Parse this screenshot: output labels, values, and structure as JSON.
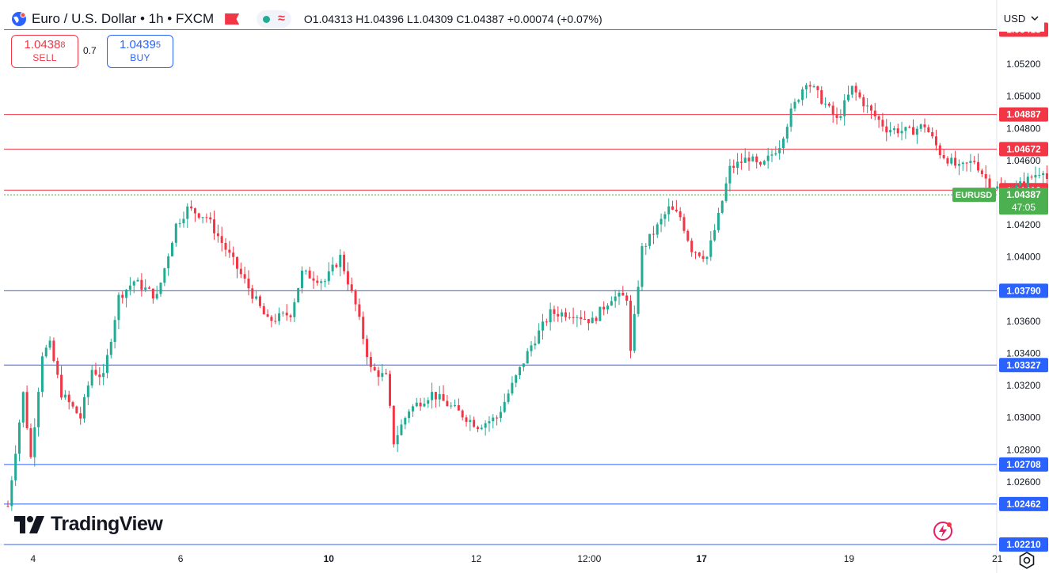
{
  "header": {
    "title": "Euro / U.S. Dollar • 1h • FXCM",
    "ohlc": "O1.04313 H1.04396 L1.04309 C1.04387 +0.00074 (+0.07%)"
  },
  "trade": {
    "sell_price": "1.0438",
    "sell_sup": "8",
    "sell_label": "SELL",
    "spread": "0.7",
    "buy_price": "1.0439",
    "buy_sup": "5",
    "buy_label": "BUY"
  },
  "currency": "USD",
  "logo_text": "TradingView",
  "icons": [
    "globe-icon",
    "flag-icon",
    "live-dot-icon",
    "wave-icon",
    "chevron-down-icon",
    "bolt-icon",
    "gear-icon"
  ],
  "colors": {
    "up": "#22ab94",
    "down": "#f23645",
    "resistance": "#f23645",
    "support": "#2962ff",
    "price_tag": "#4caf50"
  },
  "chart_data": {
    "type": "candlestick",
    "symbol": "EURUSD",
    "timeframe": "1h",
    "ylim": [
      1.0221,
      1.0559
    ],
    "y_ticks": [
      "1.05200",
      "1.05000",
      "1.04800",
      "1.04600",
      "1.04200",
      "1.04000",
      "1.03600",
      "1.03400",
      "1.03200",
      "1.03000",
      "1.02800",
      "1.02600"
    ],
    "x_ticks": [
      {
        "label": "4",
        "pos": 0.05
      },
      {
        "label": "6",
        "pos": 1.98
      },
      {
        "label": "10",
        "pos": 3.92
      },
      {
        "label": "12",
        "pos": 5.85
      },
      {
        "label": "12:00",
        "pos": 7.33
      },
      {
        "label": "17",
        "pos": 8.8
      },
      {
        "label": "19",
        "pos": 10.73
      },
      {
        "label": "21",
        "pos": 12.67
      }
    ],
    "resistance_levels": [
      "1.05415",
      "1.04887",
      "1.04672",
      "1.04416"
    ],
    "support_levels": [
      "1.03790",
      "1.03327",
      "1.02708",
      "1.02462",
      "1.02210"
    ],
    "last_price": {
      "label": "EURUSD",
      "value": "1.04387",
      "countdown": "47:05"
    },
    "series": [
      {
        "name": "EURUSD",
        "ohlc_anchors": [
          [
            0,
            1.0245
          ],
          [
            0.2,
            1.0315
          ],
          [
            0.3,
            1.0275
          ],
          [
            0.45,
            1.034
          ],
          [
            0.55,
            1.0345
          ],
          [
            0.7,
            1.0315
          ],
          [
            0.95,
            1.03
          ],
          [
            1.1,
            1.033
          ],
          [
            1.25,
            1.0325
          ],
          [
            1.45,
            1.0375
          ],
          [
            1.65,
            1.0385
          ],
          [
            1.95,
            1.0375
          ],
          [
            2.2,
            1.042
          ],
          [
            2.35,
            1.043
          ],
          [
            2.6,
            1.0425
          ],
          [
            2.85,
            1.0405
          ],
          [
            3.1,
            1.0385
          ],
          [
            3.4,
            1.036
          ],
          [
            3.7,
            1.0365
          ],
          [
            3.85,
            1.039
          ],
          [
            4.15,
            1.0385
          ],
          [
            4.35,
            1.04
          ],
          [
            4.55,
            1.037
          ],
          [
            4.75,
            1.033
          ],
          [
            4.95,
            1.0325
          ],
          [
            5.05,
            1.0285
          ],
          [
            5.25,
            1.0305
          ],
          [
            5.55,
            1.0315
          ],
          [
            5.85,
            1.0305
          ],
          [
            6.15,
            1.0295
          ],
          [
            6.4,
            1.03
          ],
          [
            6.6,
            1.032
          ],
          [
            6.85,
            1.0345
          ],
          [
            7.1,
            1.0365
          ],
          [
            7.4,
            1.0365
          ],
          [
            7.65,
            1.036
          ],
          [
            7.9,
            1.0375
          ],
          [
            8.1,
            1.0375
          ],
          [
            8.15,
            1.034
          ],
          [
            8.3,
            1.0405
          ],
          [
            8.45,
            1.0415
          ],
          [
            8.65,
            1.043
          ],
          [
            8.8,
            1.0425
          ],
          [
            8.95,
            1.0405
          ],
          [
            9.15,
            1.04
          ],
          [
            9.3,
            1.0425
          ],
          [
            9.45,
            1.0455
          ],
          [
            9.7,
            1.0462
          ],
          [
            9.85,
            1.0455
          ],
          [
            10.1,
            1.047
          ],
          [
            10.25,
            1.049
          ],
          [
            10.45,
            1.051
          ],
          [
            10.7,
            1.0495
          ],
          [
            10.85,
            1.0485
          ],
          [
            11.05,
            1.0505
          ],
          [
            11.3,
            1.049
          ],
          [
            11.5,
            1.048
          ],
          [
            11.8,
            1.0478
          ],
          [
            12.0,
            1.0482
          ],
          [
            12.2,
            1.0465
          ],
          [
            12.45,
            1.0455
          ],
          [
            12.65,
            1.046
          ],
          [
            12.85,
            1.0445
          ],
          [
            13.1,
            1.044
          ],
          [
            13.35,
            1.0448
          ],
          [
            13.55,
            1.0455
          ],
          [
            13.75,
            1.043
          ],
          [
            13.95,
            1.042
          ],
          [
            14.15,
            1.043
          ],
          [
            14.3,
            1.041
          ],
          [
            14.45,
            1.042
          ],
          [
            14.7,
            1.0425
          ],
          [
            14.9,
            1.0435
          ],
          [
            15.05,
            1.04387
          ]
        ]
      }
    ]
  }
}
